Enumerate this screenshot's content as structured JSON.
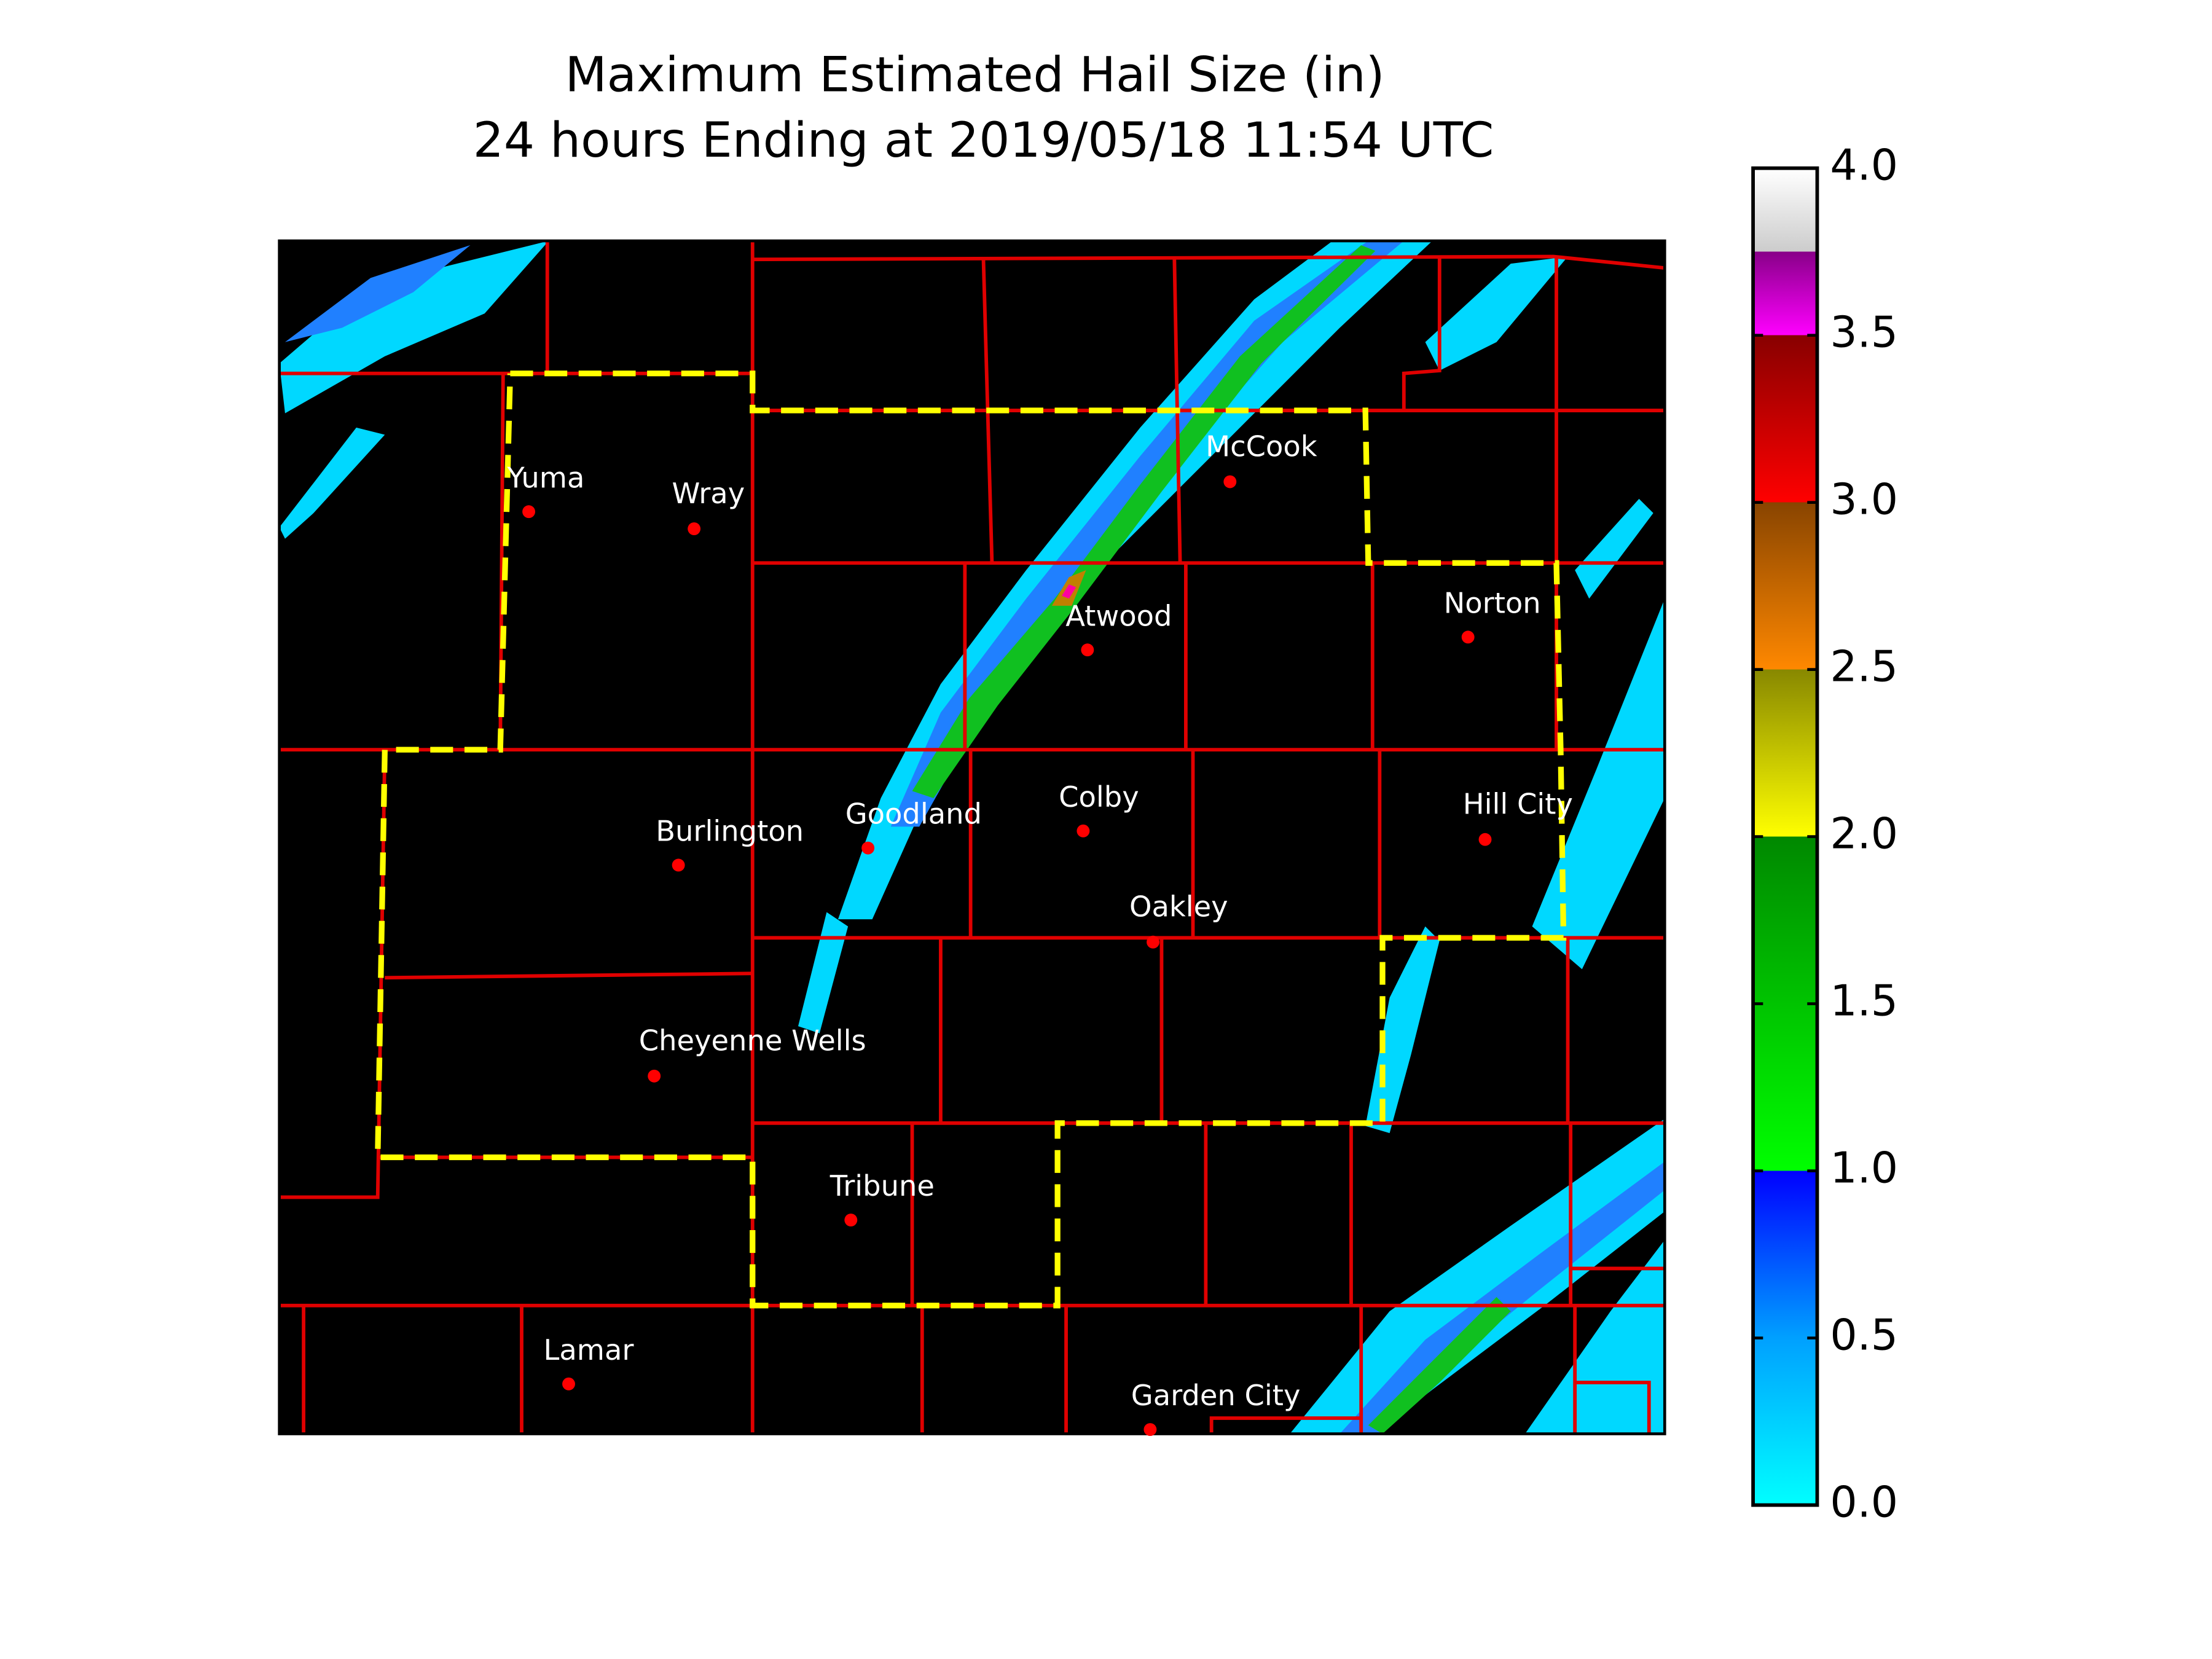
{
  "title": [
    "Maximum Estimated Hail Size (in)",
    "24 hours Ending at 2019/05/18 11:54 UTC"
  ],
  "cities": [
    "Yuma",
    "Wray",
    "McCook",
    "Atwood",
    "Norton",
    "Goodland",
    "Colby",
    "Burlington",
    "Hill City",
    "Oakley",
    "Cheyenne Wells",
    "Tribune",
    "Lamar",
    "Garden City"
  ],
  "colorbar": {
    "lim": [
      0,
      4
    ],
    "ticks": [
      {
        "value": 0,
        "label": "0.0"
      },
      {
        "value": 0.5,
        "label": "0.5"
      },
      {
        "value": 1,
        "label": "1.0"
      },
      {
        "value": 1.5,
        "label": "1.5"
      },
      {
        "value": 2,
        "label": "2.0"
      },
      {
        "value": 2.5,
        "label": "2.5"
      },
      {
        "value": 3,
        "label": "3.0"
      },
      {
        "value": 3.5,
        "label": "3.5"
      },
      {
        "value": 4,
        "label": "4.0"
      }
    ]
  }
}
